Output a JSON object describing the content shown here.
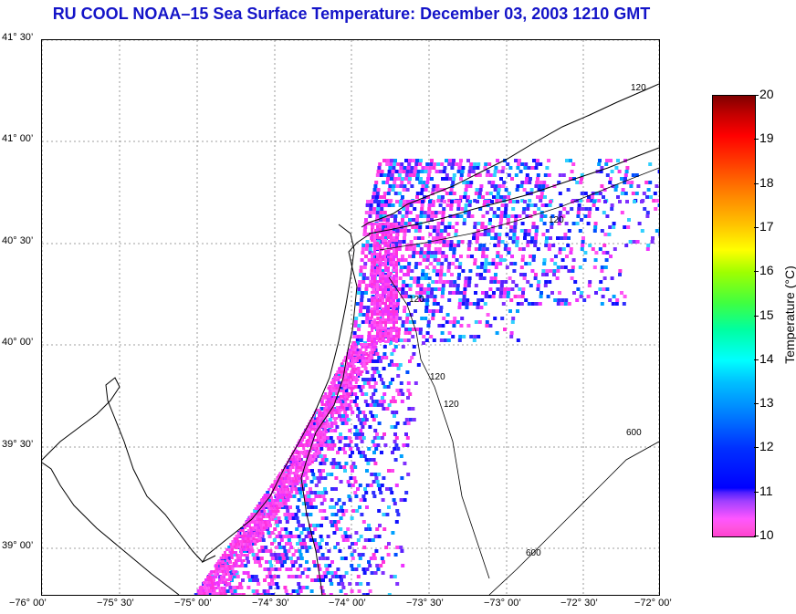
{
  "title": "RU COOL  NOAA–15  Sea Surface Temperature:  December 03, 2003 1210 GMT",
  "latitude_labels": [
    "41° 30’",
    "41° 00’",
    "40° 30’",
    "40° 00’",
    "39° 30’",
    "39° 00’"
  ],
  "longitude_labels": [
    "−76° 00’",
    "−75° 30’",
    "−75° 00’",
    "−74° 30’",
    "−74° 00’",
    "−73° 30’",
    "−73° 00’",
    "−72° 30’",
    "−72° 00’"
  ],
  "colorbar": {
    "title": "Temperature (°C)",
    "min": 10,
    "max": 20,
    "labels": [
      "20",
      "19",
      "18",
      "17",
      "16",
      "15",
      "14",
      "13",
      "12",
      "11",
      "10"
    ]
  },
  "contour_labels": [
    "120",
    "120",
    "120",
    "120",
    "120",
    "600",
    "600"
  ],
  "colors": {
    "title": "#1414c8",
    "coast": "#000000",
    "grid": "#808080",
    "sst_warm_magenta": "#ff33dd",
    "sst_cool_blue": "#1010ff"
  }
}
